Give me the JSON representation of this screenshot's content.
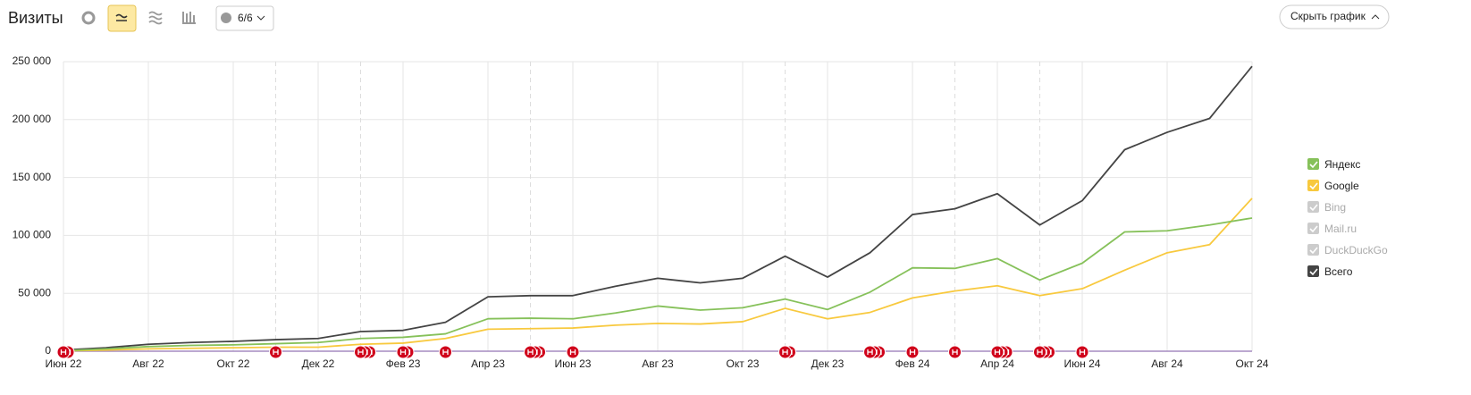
{
  "toolbar": {
    "title": "Визиты",
    "notes_button": "6/6",
    "hide_button": "Скрыть график"
  },
  "chart_data": {
    "type": "line",
    "categories": [
      "Июн 22",
      null,
      "Авг 22",
      null,
      "Окт 22",
      null,
      "Дек 22",
      null,
      "Фев 23",
      null,
      "Апр 23",
      null,
      "Июн 23",
      null,
      "Авг 23",
      null,
      "Окт 23",
      null,
      "Дек 23",
      null,
      "Фев 24",
      null,
      "Апр 24",
      null,
      "Июн 24",
      null,
      "Авг 24",
      null,
      "Окт 24"
    ],
    "ylim": [
      0,
      250000
    ],
    "yticks": [
      {
        "value": 0,
        "label": "0"
      },
      {
        "value": 50000,
        "label": "50 000"
      },
      {
        "value": 100000,
        "label": "100 000"
      },
      {
        "value": 150000,
        "label": "150 000"
      },
      {
        "value": 200000,
        "label": "200 000"
      },
      {
        "value": 250000,
        "label": "250 000"
      }
    ],
    "grid": true,
    "series": [
      {
        "name": "Яндекс",
        "color": "#86c15a",
        "checked": true,
        "values": [
          500,
          2000,
          4000,
          5000,
          5500,
          6500,
          7500,
          11000,
          12000,
          15000,
          28000,
          28500,
          28000,
          33000,
          39000,
          35500,
          37500,
          45000,
          36000,
          51000,
          72000,
          71500,
          80000,
          61500,
          76000,
          103000,
          104000,
          109000,
          115000
        ]
      },
      {
        "name": "Google",
        "color": "#f8c93e",
        "checked": true,
        "values": [
          300,
          1000,
          2000,
          2500,
          3000,
          3500,
          3500,
          6000,
          7000,
          11000,
          19000,
          19500,
          20000,
          22500,
          24000,
          23500,
          25500,
          37000,
          28000,
          33500,
          46000,
          52000,
          56500,
          48000,
          54000,
          70000,
          85000,
          92000,
          132000
        ]
      },
      {
        "name": "Bing",
        "color": "#cccccc",
        "checked": false
      },
      {
        "name": "Mail.ru",
        "color": "#cccccc",
        "checked": false
      },
      {
        "name": "DuckDuckGo",
        "color": "#cccccc",
        "checked": false
      },
      {
        "name": "Всего",
        "color": "#444444",
        "checked": true,
        "values": [
          1000,
          3000,
          6000,
          7500,
          8500,
          10000,
          11000,
          17000,
          18000,
          25000,
          47000,
          48000,
          48000,
          56000,
          63000,
          59000,
          63000,
          82000,
          64000,
          85000,
          118000,
          123000,
          136000,
          109000,
          130000,
          174000,
          189000,
          201000,
          246000
        ]
      }
    ]
  }
}
